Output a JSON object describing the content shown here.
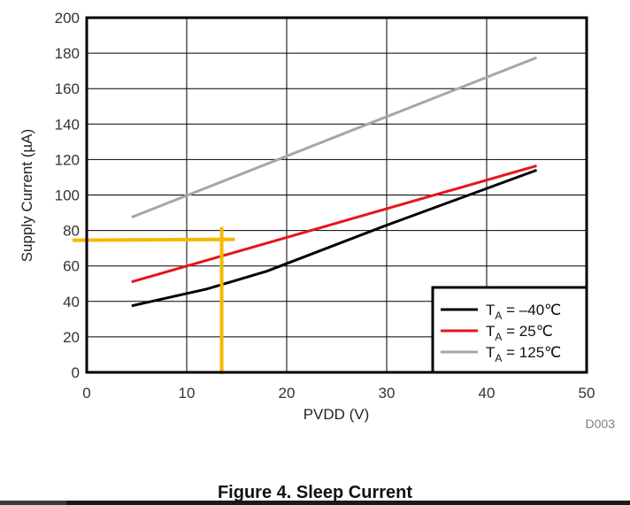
{
  "chart_data": {
    "type": "line",
    "xlabel": "PVDD (V)",
    "ylabel": "Supply Current (µA)",
    "xlim": [
      0,
      50
    ],
    "ylim": [
      0,
      200
    ],
    "xticks": [
      "0",
      "10",
      "20",
      "30",
      "40",
      "50"
    ],
    "yticks": [
      "0",
      "20",
      "40",
      "60",
      "80",
      "100",
      "120",
      "140",
      "160",
      "180",
      "200"
    ],
    "grid": true,
    "legend_position": "bottom-right",
    "series": [
      {
        "name_main": "T",
        "name_sub": "A",
        "name_rest": " = –40℃",
        "color": "#000000",
        "x": [
          4.5,
          12,
          18,
          30,
          45
        ],
        "y": [
          37.5,
          47,
          57,
          83,
          114
        ]
      },
      {
        "name_main": "T",
        "name_sub": "A",
        "name_rest": " = 25℃",
        "color": "#e8141b",
        "x": [
          4.5,
          45
        ],
        "y": [
          51,
          116.5
        ]
      },
      {
        "name_main": "T",
        "name_sub": "A",
        "name_rest": " = 125℃",
        "color": "#a6a6a6",
        "x": [
          4.5,
          45
        ],
        "y": [
          87.5,
          177.5
        ]
      }
    ],
    "annotation": {
      "color": "#f5b800",
      "x": 13.5,
      "y": 74
    },
    "figure_code": "D003"
  },
  "caption": "Figure 4. Sleep Current"
}
